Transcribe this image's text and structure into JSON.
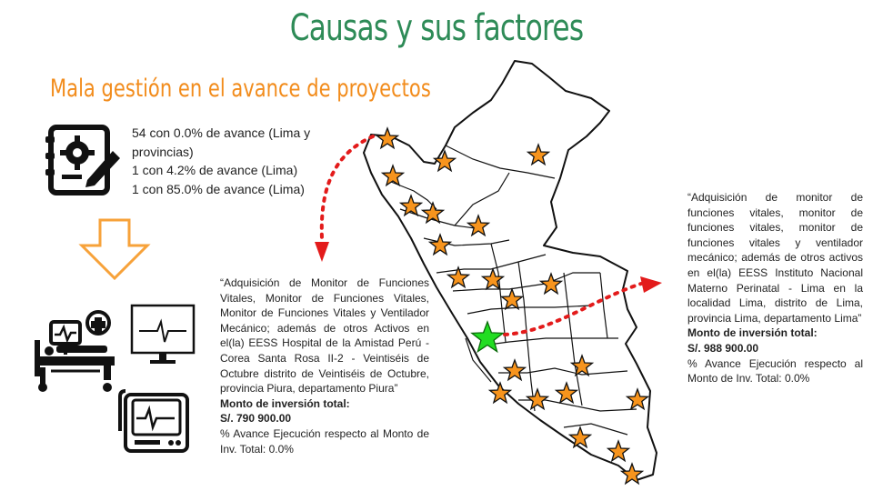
{
  "title": "Causas y sus factores",
  "subtitle": "Mala gestión en el avance de proyectos",
  "stats": [
    "54 con 0.0% de avance (Lima y provincias)",
    "1 con 4.2%  de avance (Lima)",
    "1 con 85.0% de avance (Lima)"
  ],
  "left_project": {
    "description": "“Adquisición de Monitor de Funciones Vitales, Monitor de Funciones Vitales, Monitor de Funciones Vitales y Ventilador Mecánico; además de otros Activos en el(la) EESS Hospital de la Amistad Perú - Corea Santa Rosa II-2 - Veintiséis de Octubre distrito de Veintiséis de Octubre, provincia Piura, departamento Piura”",
    "investment_label": "Monto de inversión total:",
    "investment_value": "S/. 790 900.00",
    "progress_text": "% Avance Ejecución respecto al Monto de Inv. Total: 0.0%"
  },
  "right_project": {
    "description": "“Adquisición de monitor de funciones vitales, monitor de funciones vitales, monitor de funciones vitales y ventilador mecánico; además de otros activos en el(la) EESS Instituto Nacional Materno Perinatal - Lima en la localidad Lima, distrito de Lima, provincia Lima, departamento Lima”",
    "investment_label": "Monto de inversión total:",
    "investment_value": "S/. 988 900.00",
    "progress_text": "% Avance Ejecución respecto al Monto de Inv. Total: 0.0%"
  },
  "colors": {
    "title": "#2e8b57",
    "subtitle": "#f28c1c",
    "star_orange": "#f7941d",
    "star_green": "#22dd22",
    "arrow_red": "#e31b1b"
  },
  "icons": [
    "settings-document-icon",
    "down-arrow-icon",
    "hospital-bed-icon",
    "monitor-icon",
    "ecg-device-icon"
  ]
}
